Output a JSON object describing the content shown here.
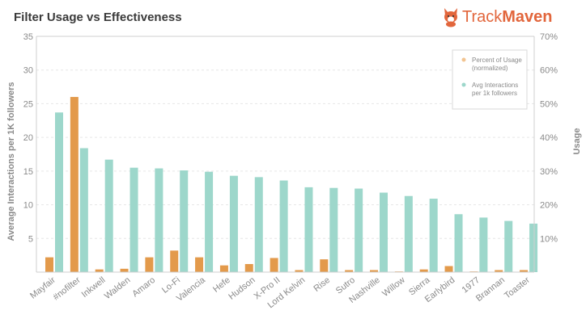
{
  "title": "Filter Usage vs Effectiveness",
  "brand": {
    "name_light": "Track",
    "name_bold": "Maven",
    "color": "#e2663c",
    "icon": "corgi-logo-icon"
  },
  "chart_data": {
    "type": "bar",
    "title": "Filter Usage vs Effectiveness",
    "categories": [
      "Mayfair",
      "#nofilter",
      "Inkwell",
      "Walden",
      "Amaro",
      "Lo-Fi",
      "Valencia",
      "Hefe",
      "Hudson",
      "X-Pro II",
      "Lord Kelvin",
      "Rise",
      "Sutro",
      "Nashville",
      "Willow",
      "Sierra",
      "Earlybird",
      "1977",
      "Brannan",
      "Toaster"
    ],
    "series": [
      {
        "name": "Percent of Usage (normalized)",
        "axis": "right",
        "color": "#e39a4b",
        "values": [
          4.4,
          52,
          0.8,
          1.0,
          4.4,
          6.4,
          4.4,
          2.0,
          2.4,
          4.2,
          0.6,
          3.8,
          0.6,
          0.6,
          0.2,
          0.8,
          1.8,
          0.2,
          0.6,
          0.6
        ]
      },
      {
        "name": "Avg Interactions per 1k followers",
        "axis": "left",
        "color": "#9dd7cb",
        "values": [
          23.7,
          18.4,
          16.7,
          15.5,
          15.4,
          15.1,
          14.9,
          14.3,
          14.1,
          13.6,
          12.6,
          12.5,
          12.4,
          11.8,
          11.3,
          10.9,
          8.6,
          8.1,
          7.6,
          7.2
        ]
      }
    ],
    "ylabel": "Average Interactions per 1K followers",
    "ylim": [
      0,
      35
    ],
    "yticks": [
      5,
      10,
      15,
      20,
      25,
      30,
      35
    ],
    "y2label": "Usage",
    "y2lim": [
      0,
      70
    ],
    "y2ticks": [
      "10%",
      "20%",
      "30%",
      "40%",
      "50%",
      "60%",
      "70%"
    ],
    "grid": true,
    "legend": {
      "position": "top-right",
      "entries": [
        {
          "lines": [
            "Percent of Usage",
            "(normalized)"
          ],
          "color": "#f2c491"
        },
        {
          "lines": [
            "Avg Interactions",
            "per 1k followers"
          ],
          "color": "#9dd7cb"
        }
      ]
    }
  }
}
